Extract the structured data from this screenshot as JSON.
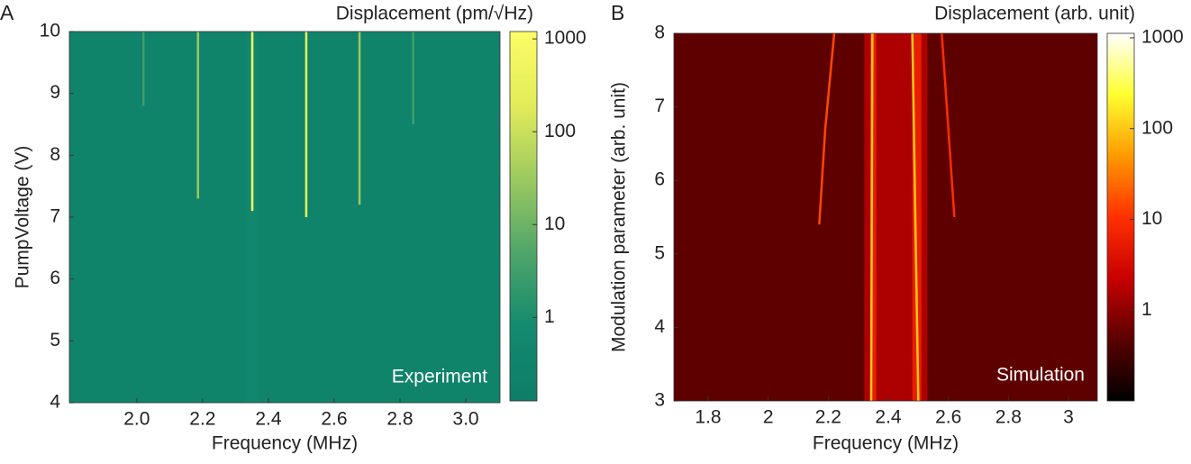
{
  "chart_data": [
    {
      "type": "heatmap",
      "panel_label": "A",
      "title": "Displacement (pm/√Hz)",
      "annotation": "Experiment",
      "x_label": "Frequency (MHz)",
      "y_label": "PumpVoltage (V)",
      "xlim": [
        1.795,
        3.104
      ],
      "ylim": [
        4,
        10
      ],
      "xticks": [
        {
          "value": 2.0,
          "label": "2.0"
        },
        2.2,
        2.4,
        2.6,
        2.8,
        {
          "value": 3.0,
          "label": "3.0"
        }
      ],
      "yticks": [
        4,
        5,
        6,
        7,
        8,
        9,
        10
      ],
      "colorbar": {
        "scale": "log",
        "lim": [
          0.126,
          1200
        ],
        "ticks": [
          1,
          10,
          100,
          1000
        ],
        "colormap": [
          "#0e7d69",
          "#138a6e",
          "#4fa56a",
          "#9cc95f",
          "#e2ec5a",
          "#fcfc66"
        ]
      },
      "background": 0.3,
      "bands": [
        {
          "x": [
            2.33,
            2.37
          ],
          "level": 0.6
        }
      ],
      "traces": [
        {
          "x": [
            2.351,
            2.351
          ],
          "y": [
            7.1,
            10
          ],
          "level": 1000
        },
        {
          "x": [
            2.515,
            2.515
          ],
          "y": [
            7.0,
            10
          ],
          "level": 300
        },
        {
          "x": [
            2.186,
            2.186
          ],
          "y": [
            7.3,
            10
          ],
          "level": 30
        },
        {
          "x": [
            2.677,
            2.677
          ],
          "y": [
            7.2,
            10
          ],
          "level": 30
        },
        {
          "x": [
            2.02,
            2.02
          ],
          "y": [
            8.8,
            10
          ],
          "level": 3
        },
        {
          "x": [
            2.84,
            2.84
          ],
          "y": [
            8.5,
            10
          ],
          "level": 3
        }
      ]
    },
    {
      "type": "heatmap",
      "panel_label": "B",
      "title": "Displacement (arb. unit)",
      "annotation": "Simulation",
      "x_label": "Frequency (MHz)",
      "y_label": "Modulation parameter (arb. unit)",
      "xlim": [
        1.686,
        3.096
      ],
      "ylim": [
        3,
        8
      ],
      "xticks": [
        1.8,
        2,
        2.2,
        2.4,
        2.6,
        2.8,
        3.0
      ],
      "yticks": [
        3,
        4,
        5,
        6,
        7,
        8
      ],
      "colorbar": {
        "scale": "log",
        "lim": [
          0.1,
          1120
        ],
        "ticks": [
          1,
          10,
          100,
          1000
        ],
        "colormap": [
          "#000000",
          "#5a0000",
          "#c80000",
          "#ff3000",
          "#ff9a00",
          "#ffff30",
          "#ffffff"
        ]
      },
      "background": 0.5,
      "bands": [
        {
          "x": [
            2.32,
            2.53
          ],
          "level": 2
        },
        {
          "x": [
            2.34,
            2.36
          ],
          "level": 8
        },
        {
          "x": [
            2.48,
            2.51
          ],
          "level": 8
        }
      ],
      "traces": [
        {
          "x": [
            2.343,
            2.345,
            2.347
          ],
          "y": [
            3,
            5.5,
            8
          ],
          "level": 100
        },
        {
          "x": [
            2.5,
            2.49,
            2.48
          ],
          "y": [
            3,
            5.5,
            8
          ],
          "level": 100
        },
        {
          "x": [
            2.17,
            2.19,
            2.22
          ],
          "y": [
            5.4,
            6.7,
            8
          ],
          "level": 15
        },
        {
          "x": [
            2.62,
            2.6,
            2.578
          ],
          "y": [
            5.5,
            6.7,
            8
          ],
          "level": 10
        }
      ]
    }
  ]
}
